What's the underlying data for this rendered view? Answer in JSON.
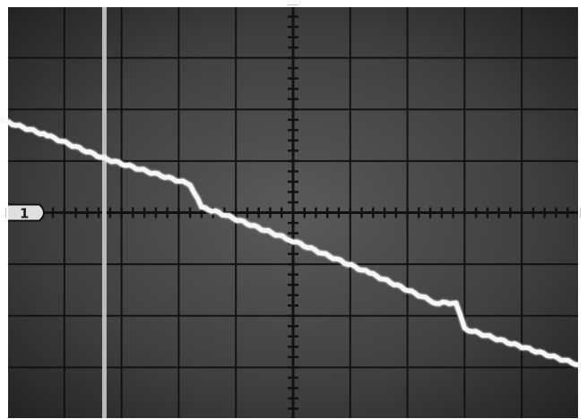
{
  "chart_data": {
    "type": "line",
    "title": "",
    "xlabel": "",
    "ylabel": "",
    "grid": true,
    "xlim": [
      -5,
      5
    ],
    "ylim": [
      -4,
      4
    ],
    "x_divisions": 10,
    "y_divisions": 8,
    "minor_ticks_per_division": 5,
    "channel_marker": "1",
    "cursor_x": -3.3,
    "series": [
      {
        "x": [
          -5.4,
          -4.3,
          -3.3,
          -1.8,
          -1.6,
          -1.3,
          0.0,
          1.4,
          2.5,
          2.85,
          3.0,
          4.0,
          5.0
        ],
        "y": [
          1.9,
          1.5,
          1.05,
          0.55,
          0.1,
          0.0,
          -0.55,
          -1.2,
          -1.75,
          -1.75,
          -2.25,
          -2.6,
          -2.95
        ]
      }
    ],
    "colors": {
      "screen": "#3e3e3e",
      "grid": "#121212",
      "trace": "#f6f6f6",
      "cursor": "#c9c9c9",
      "border": "#ffffff"
    }
  }
}
